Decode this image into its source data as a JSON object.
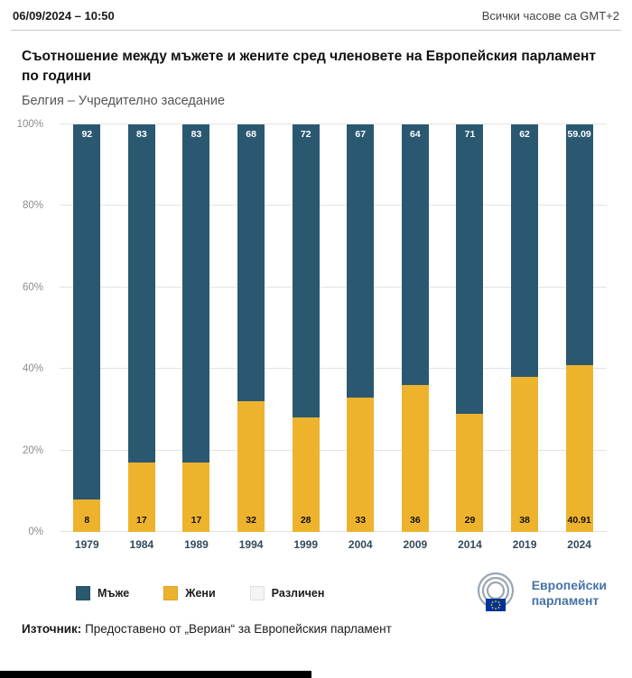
{
  "header": {
    "datetime": "06/09/2024 – 10:50",
    "timezone_note": "Всички часове са GMT+2"
  },
  "title": "Съотношение между мъжете и жените сред членовете на Европейския парламент по години",
  "subtitle": "Белгия – Учредително заседание",
  "chart_data": {
    "type": "bar",
    "stacked": true,
    "percent_stacked": true,
    "categories": [
      "1979",
      "1984",
      "1989",
      "1994",
      "1999",
      "2004",
      "2009",
      "2014",
      "2019",
      "2024"
    ],
    "series": [
      {
        "name": "Мъже",
        "color": "#2a5871",
        "values": [
          92,
          83,
          83,
          68,
          72,
          67,
          64,
          71,
          62,
          59.09
        ],
        "labels": [
          "92",
          "83",
          "83",
          "68",
          "72",
          "67",
          "64",
          "71",
          "62",
          "59.09"
        ]
      },
      {
        "name": "Жени",
        "color": "#eeb32d",
        "values": [
          8,
          17,
          17,
          32,
          28,
          33,
          36,
          29,
          38,
          40.91
        ],
        "labels": [
          "8",
          "17",
          "17",
          "32",
          "28",
          "33",
          "36",
          "29",
          "38",
          "40.91"
        ]
      },
      {
        "name": "Различен",
        "color": "#f4f4f4",
        "values": [
          0,
          0,
          0,
          0,
          0,
          0,
          0,
          0,
          0,
          0
        ],
        "labels": []
      }
    ],
    "ylim": [
      0,
      100
    ],
    "yticks": [
      "0%",
      "20%",
      "40%",
      "60%",
      "80%",
      "100%"
    ],
    "grid": true,
    "legend_position": "bottom"
  },
  "legend": [
    {
      "label": "Мъже",
      "color": "#2a5871"
    },
    {
      "label": "Жени",
      "color": "#eeb32d"
    },
    {
      "label": "Различен",
      "color": "#f4f4f4"
    }
  ],
  "logo": {
    "line1": "Европейски",
    "line2": "парламент"
  },
  "source": {
    "label": "Източник:",
    "text": " Предоставено от „Вериан“ за Европейския парламент"
  }
}
